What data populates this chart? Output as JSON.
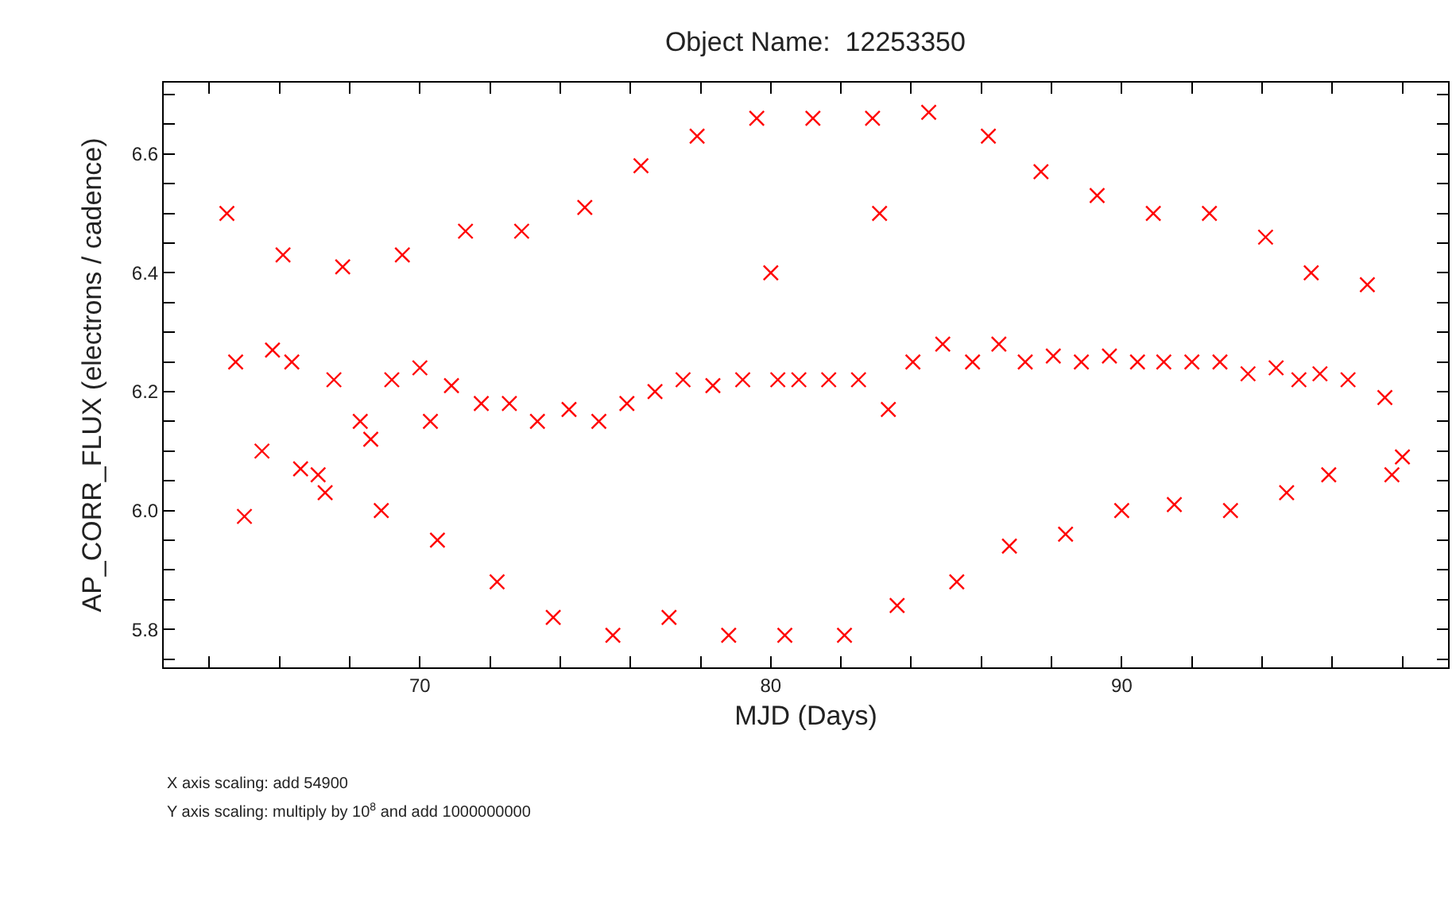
{
  "chart_data": {
    "type": "scatter",
    "title": "Object Name:  12253350",
    "xlabel": "MJD (Days)",
    "ylabel": "AP_CORR_FLUX (electrons / cadence)",
    "annotations": [
      "X axis scaling: add 54900",
      "Y axis scaling: multiply by 10$^{8}$ and add 1000000000"
    ],
    "x": [
      64.5,
      64.75,
      65.0,
      65.5,
      65.8,
      66.1,
      66.35,
      66.6,
      67.1,
      67.3,
      67.55,
      67.8,
      68.3,
      68.6,
      68.9,
      69.2,
      69.5,
      70.0,
      70.3,
      70.5,
      70.9,
      71.3,
      71.75,
      72.2,
      72.55,
      72.9,
      73.35,
      73.8,
      74.25,
      74.7,
      75.1,
      75.5,
      75.9,
      76.3,
      76.7,
      77.1,
      77.5,
      77.9,
      78.35,
      78.8,
      79.2,
      79.6,
      80.0,
      80.2,
      80.4,
      80.8,
      81.2,
      81.65,
      82.1,
      82.5,
      82.9,
      83.1,
      83.35,
      83.6,
      84.05,
      84.5,
      84.9,
      85.3,
      85.75,
      86.2,
      86.5,
      86.8,
      87.25,
      87.7,
      88.05,
      88.4,
      88.85,
      89.3,
      89.65,
      90.0,
      90.45,
      90.9,
      91.2,
      91.5,
      92.0,
      92.5,
      92.8,
      93.1,
      93.6,
      94.1,
      94.4,
      94.7,
      95.05,
      95.4,
      95.65,
      95.9,
      96.45,
      97.0,
      97.5,
      97.7,
      98.0
    ],
    "series": [
      {
        "color": "#ff0000",
        "values": [
          6.5,
          6.25,
          5.99,
          6.1,
          6.27,
          6.43,
          6.25,
          6.07,
          6.06,
          6.03,
          6.22,
          6.41,
          6.15,
          6.12,
          6.0,
          6.22,
          6.43,
          6.24,
          6.15,
          5.95,
          6.21,
          6.47,
          6.18,
          5.88,
          6.18,
          6.47,
          6.15,
          5.82,
          6.17,
          6.51,
          6.15,
          5.79,
          6.18,
          6.58,
          6.2,
          5.82,
          6.22,
          6.63,
          6.21,
          5.79,
          6.22,
          6.66,
          6.4,
          6.22,
          5.79,
          6.22,
          6.66,
          6.22,
          5.79,
          6.22,
          6.66,
          6.5,
          6.17,
          5.84,
          6.25,
          6.67,
          6.28,
          5.88,
          6.25,
          6.63,
          6.28,
          5.94,
          6.25,
          6.57,
          6.26,
          5.96,
          6.25,
          6.53,
          6.26,
          6.0,
          6.25,
          6.5,
          6.25,
          6.01,
          6.25,
          6.5,
          6.25,
          6.0,
          6.23,
          6.46,
          6.24,
          6.03,
          6.22,
          6.4,
          6.23,
          6.06,
          6.22,
          6.38,
          6.19,
          6.06,
          6.09
        ]
      }
    ],
    "marker": "cross",
    "xlim": [
      62.7,
      99.3
    ],
    "xticks": [
      {
        "value": 64,
        "label": null
      },
      {
        "value": 66,
        "label": null
      },
      {
        "value": 68,
        "label": null
      },
      70,
      {
        "value": 72,
        "label": null
      },
      {
        "value": 74,
        "label": null
      },
      {
        "value": 76,
        "label": null
      },
      {
        "value": 78,
        "label": null
      },
      80,
      {
        "value": 82,
        "label": null
      },
      {
        "value": 84,
        "label": null
      },
      {
        "value": 86,
        "label": null
      },
      {
        "value": 88,
        "label": null
      },
      90,
      {
        "value": 92,
        "label": null
      },
      {
        "value": 94,
        "label": null
      },
      {
        "value": 96,
        "label": null
      },
      {
        "value": 98,
        "label": null
      }
    ],
    "ylim": [
      5.736,
      6.72
    ],
    "yticks": [
      {
        "value": 5.75,
        "label": null
      },
      5.8,
      {
        "value": 5.85,
        "label": null
      },
      {
        "value": 5.9,
        "label": null
      },
      {
        "value": 5.95,
        "label": null
      },
      {
        "value": 6.0,
        "label": "6.0"
      },
      {
        "value": 6.05,
        "label": null
      },
      {
        "value": 6.1,
        "label": null
      },
      {
        "value": 6.15,
        "label": null
      },
      6.2,
      {
        "value": 6.25,
        "label": null
      },
      {
        "value": 6.3,
        "label": null
      },
      {
        "value": 6.35,
        "label": null
      },
      6.4,
      {
        "value": 6.45,
        "label": null
      },
      {
        "value": 6.5,
        "label": null
      },
      {
        "value": 6.55,
        "label": null
      },
      6.6,
      {
        "value": 6.65,
        "label": null
      },
      {
        "value": 6.7,
        "label": null
      }
    ],
    "line_style": null
  }
}
